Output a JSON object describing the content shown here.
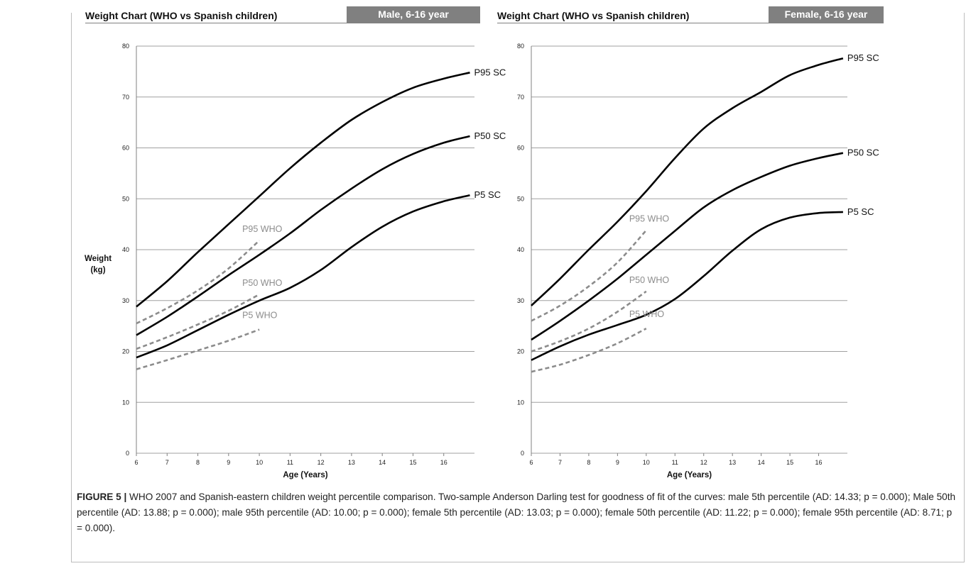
{
  "figure": {
    "caption_label": "FIGURE 5 |",
    "caption_text": " WHO 2007 and Spanish-eastern children weight percentile comparison. Two-sample Anderson Darling test for goodness of fit of the curves: male 5th percentile (AD: 14.33; p = 0.000); Male 50th percentile (AD: 13.88; p = 0.000); male 95th percentile (AD: 10.00; p = 0.000); female 5th percentile (AD: 13.03; p = 0.000); female 50th percentile (AD: 11.22; p = 0.000); female 95th percentile (AD: 8.71; p = 0.000)."
  },
  "chart_data": [
    {
      "type": "line",
      "title": "Weight Chart (WHO vs Spanish children)",
      "subtitle": "Male, 6-16 year",
      "xlabel": "Age (Years)",
      "ylabel": "Weight (kg)",
      "ylabel_lines": [
        "Weight",
        "(kg)"
      ],
      "xlim": [
        6,
        17
      ],
      "ylim": [
        0,
        80
      ],
      "xticks": [
        6,
        7,
        8,
        9,
        10,
        11,
        12,
        13,
        14,
        15,
        16
      ],
      "yticks": [
        0,
        10,
        20,
        30,
        40,
        50,
        60,
        70,
        80
      ],
      "grid": true,
      "series": [
        {
          "name": "P95 SC",
          "style": "solid",
          "color": "#000000",
          "x": [
            6,
            7,
            8,
            9,
            10,
            11,
            12,
            13,
            14,
            15,
            16,
            16.85
          ],
          "y": [
            28.8,
            33.8,
            39.5,
            45.0,
            50.5,
            56.0,
            61.0,
            65.5,
            69.0,
            71.8,
            73.6,
            74.8
          ]
        },
        {
          "name": "P50 SC",
          "style": "solid",
          "color": "#000000",
          "x": [
            6,
            7,
            8,
            9,
            10,
            11,
            12,
            13,
            14,
            15,
            16,
            16.85
          ],
          "y": [
            23.2,
            26.8,
            30.8,
            35.0,
            39.0,
            43.2,
            47.8,
            52.0,
            55.8,
            58.8,
            61.0,
            62.3
          ]
        },
        {
          "name": "P5 SC",
          "style": "solid",
          "color": "#000000",
          "x": [
            6,
            7,
            8,
            9,
            10,
            11,
            12,
            13,
            14,
            15,
            16,
            16.85
          ],
          "y": [
            18.8,
            21.2,
            24.2,
            27.2,
            30.0,
            32.5,
            36.0,
            40.5,
            44.5,
            47.5,
            49.5,
            50.7
          ]
        },
        {
          "name": "P95 WHO",
          "style": "dashed",
          "color": "#8c8c8c",
          "x": [
            6,
            7,
            8,
            9,
            10
          ],
          "y": [
            25.5,
            28.5,
            32.0,
            36.3,
            41.8
          ]
        },
        {
          "name": "P50 WHO",
          "style": "dashed",
          "color": "#8c8c8c",
          "x": [
            6,
            7,
            8,
            9,
            10
          ],
          "y": [
            20.5,
            22.8,
            25.3,
            28.0,
            31.2
          ]
        },
        {
          "name": "P5 WHO",
          "style": "dashed",
          "color": "#8c8c8c",
          "x": [
            6,
            7,
            8,
            9,
            10
          ],
          "y": [
            16.5,
            18.3,
            20.2,
            22.1,
            24.3
          ]
        }
      ]
    },
    {
      "type": "line",
      "title": "Weight Chart (WHO vs Spanish children)",
      "subtitle": "Female, 6-16 year",
      "xlabel": "Age (Years)",
      "ylabel": "",
      "xlim": [
        6,
        17
      ],
      "ylim": [
        0,
        80
      ],
      "xticks": [
        6,
        7,
        8,
        9,
        10,
        11,
        12,
        13,
        14,
        15,
        16
      ],
      "yticks": [
        0,
        10,
        20,
        30,
        40,
        50,
        60,
        70,
        80
      ],
      "grid": true,
      "series": [
        {
          "name": "P95 SC",
          "style": "solid",
          "color": "#000000",
          "x": [
            6,
            7,
            8,
            9,
            10,
            11,
            12,
            13,
            14,
            15,
            16,
            16.85
          ],
          "y": [
            29.0,
            34.3,
            40.0,
            45.5,
            51.5,
            58.0,
            63.8,
            67.8,
            71.0,
            74.3,
            76.3,
            77.6
          ]
        },
        {
          "name": "P50 SC",
          "style": "solid",
          "color": "#000000",
          "x": [
            6,
            7,
            8,
            9,
            10,
            11,
            12,
            13,
            14,
            15,
            16,
            16.85
          ],
          "y": [
            22.3,
            26.0,
            30.0,
            34.3,
            39.0,
            43.7,
            48.3,
            51.7,
            54.3,
            56.5,
            58.0,
            59.0
          ]
        },
        {
          "name": "P5 SC",
          "style": "solid",
          "color": "#000000",
          "x": [
            6,
            7,
            8,
            9,
            10,
            11,
            12,
            13,
            14,
            15,
            16,
            16.85
          ],
          "y": [
            18.3,
            21.0,
            23.3,
            25.2,
            27.2,
            30.3,
            34.8,
            39.8,
            44.0,
            46.3,
            47.2,
            47.4
          ]
        },
        {
          "name": "P95 WHO",
          "style": "dashed",
          "color": "#8c8c8c",
          "x": [
            6,
            7,
            8,
            9,
            10
          ],
          "y": [
            26.0,
            29.0,
            32.8,
            37.5,
            43.8
          ]
        },
        {
          "name": "P50 WHO",
          "style": "dashed",
          "color": "#8c8c8c",
          "x": [
            6,
            7,
            8,
            9,
            10
          ],
          "y": [
            20.0,
            22.0,
            24.5,
            27.8,
            31.8
          ]
        },
        {
          "name": "P5 WHO",
          "style": "dashed",
          "color": "#8c8c8c",
          "x": [
            6,
            7,
            8,
            9,
            10
          ],
          "y": [
            16.0,
            17.4,
            19.3,
            21.6,
            24.5
          ]
        }
      ]
    }
  ]
}
